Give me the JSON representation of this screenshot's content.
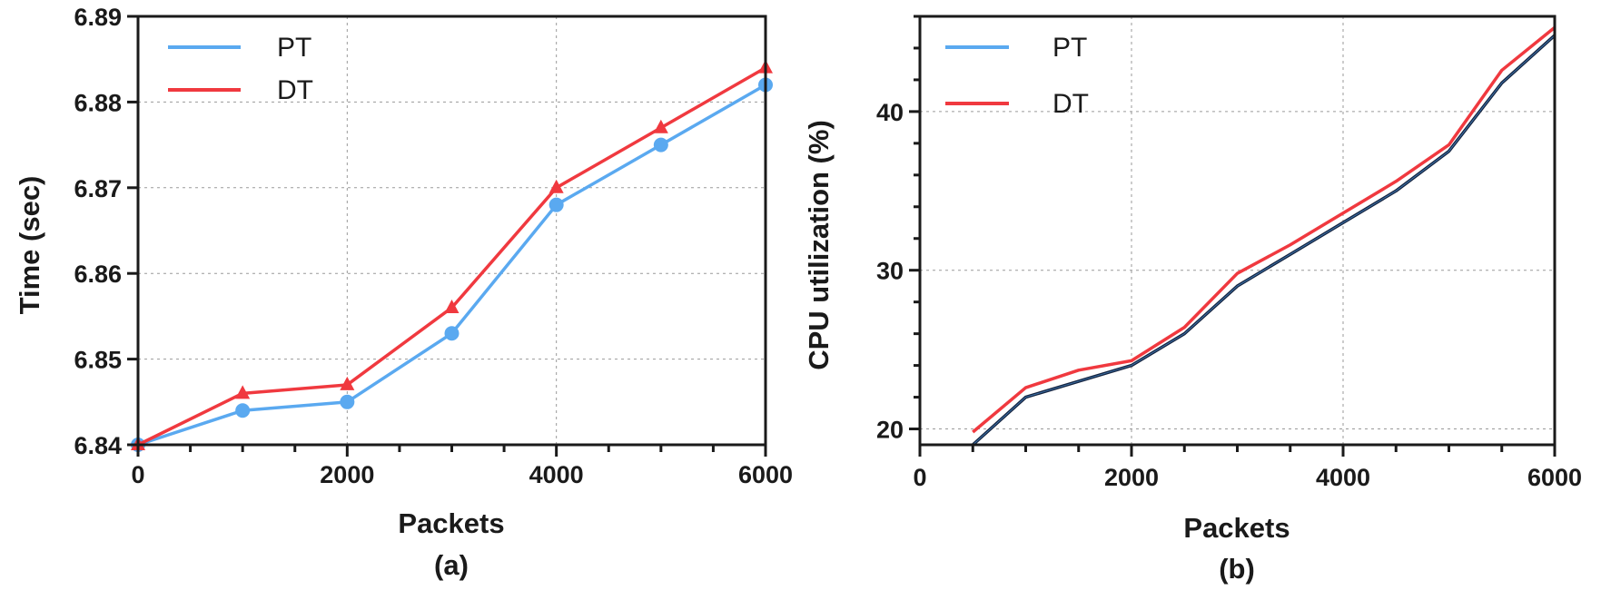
{
  "chart_data": [
    {
      "type": "line",
      "panel_label": "(a)",
      "xlabel": "Packets",
      "ylabel": "Time (sec)",
      "xlim": [
        0,
        6000
      ],
      "ylim": [
        6.84,
        6.89
      ],
      "xticks": [
        0,
        2000,
        4000,
        6000
      ],
      "xtick_labels": [
        "0",
        "2000",
        "4000",
        "6000"
      ],
      "yticks": [
        6.84,
        6.85,
        6.86,
        6.87,
        6.88,
        6.89
      ],
      "ytick_labels": [
        "6.84",
        "6.85",
        "6.86",
        "6.87",
        "6.88",
        "6.89"
      ],
      "x_minor_step": 500,
      "grid": true,
      "legend": "top-left",
      "series": [
        {
          "name": "PT",
          "color": "#5aa9f0",
          "marker": "circle",
          "x": [
            0,
            1000,
            2000,
            3000,
            4000,
            5000,
            6000
          ],
          "y": [
            6.84,
            6.844,
            6.845,
            6.853,
            6.868,
            6.875,
            6.882
          ]
        },
        {
          "name": "DT",
          "color": "#f0393f",
          "marker": "triangle",
          "x": [
            0,
            1000,
            2000,
            3000,
            4000,
            5000,
            6000
          ],
          "y": [
            6.84,
            6.846,
            6.847,
            6.856,
            6.87,
            6.877,
            6.884
          ]
        }
      ]
    },
    {
      "type": "line",
      "panel_label": "(b)",
      "xlabel": "Packets",
      "ylabel": "CPU utilization (%)",
      "xlim": [
        0,
        6000
      ],
      "ylim": [
        19,
        46
      ],
      "xticks": [
        0,
        2000,
        4000,
        6000
      ],
      "xtick_labels": [
        "0",
        "2000",
        "4000",
        "6000"
      ],
      "yticks": [
        20,
        30,
        40
      ],
      "ytick_labels": [
        "20",
        "30",
        "40"
      ],
      "x_minor_step": 500,
      "y_minor_step": 2,
      "grid": true,
      "legend": "top-left",
      "series": [
        {
          "name": "PT",
          "color": "#5aa9f0",
          "line_color": "#14233f",
          "marker": "none",
          "x": [
            500,
            1000,
            1500,
            2000,
            2500,
            3000,
            3500,
            4000,
            4500,
            5000,
            5500,
            6000
          ],
          "y": [
            19.0,
            22.0,
            23.0,
            24.0,
            26.0,
            29.0,
            31.0,
            33.0,
            35.0,
            37.5,
            41.8,
            44.8
          ]
        },
        {
          "name": "DT",
          "color": "#f0393f",
          "marker": "none",
          "x": [
            500,
            1000,
            1500,
            2000,
            2500,
            3000,
            3500,
            4000,
            4500,
            5000,
            5500,
            6000
          ],
          "y": [
            19.8,
            22.6,
            23.7,
            24.3,
            26.4,
            29.8,
            31.6,
            33.6,
            35.6,
            37.9,
            42.6,
            45.3
          ]
        }
      ]
    }
  ]
}
